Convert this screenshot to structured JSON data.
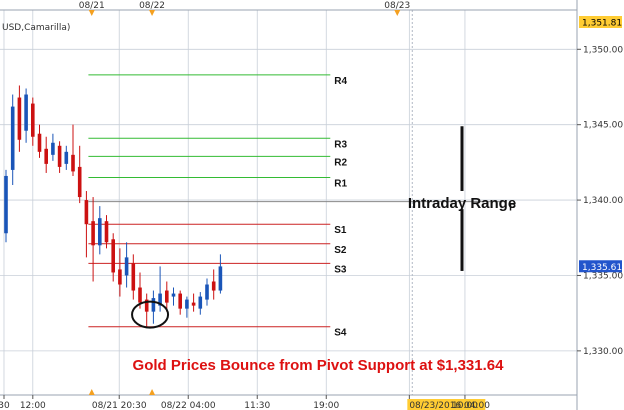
{
  "symbol_label": "USD,Camarilla)",
  "colors": {
    "up": "#1a55b8",
    "down": "#cc1111",
    "resistance": "#33bb33",
    "support": "#cc2222",
    "pivot": "#888888",
    "highlight_price_bg": "#ffcc33",
    "last_price_bg": "#2255cc",
    "title_color": "#dd1111",
    "grid": "#c8cfd8",
    "marker_fill": "#f4a020"
  },
  "chart_data": {
    "type": "candlestick",
    "title": "Gold Prices Bounce from Pivot Support at $1,331.64",
    "annotation": "Intraday Range",
    "y_axis": {
      "min": 1328.2,
      "max": 1351.81,
      "ticks": [
        1330.0,
        1335.0,
        1340.0,
        1345.0,
        1350.0
      ],
      "tick_labels": [
        "1,330.00",
        "1,335.00",
        "1,340.00",
        "1,345.00",
        "1,350.00"
      ]
    },
    "highlighted_prices": [
      {
        "value": 1351.81,
        "label": "1,351.81",
        "style": "highlight"
      },
      {
        "value": 1335.61,
        "label": "1,335.61",
        "style": "last"
      }
    ],
    "x_axis": {
      "bottom_ticks": [
        {
          "label": "30",
          "index": -0.3
        },
        {
          "label": "12:00",
          "index": 4
        },
        {
          "label": "08/21 20:30",
          "index": 16.9
        },
        {
          "label": "08/22 04:00",
          "index": 27.2
        },
        {
          "label": "11:30",
          "index": 37.5
        },
        {
          "label": "19:00",
          "index": 47.8
        },
        {
          "label": "08/23/2016 04:00",
          "index": 60.2
        },
        {
          "label": "10:00",
          "index": 68.5
        }
      ],
      "top_ticks": [
        {
          "label": "08/21",
          "index": 12.8
        },
        {
          "label": "08/22",
          "index": 21.8
        },
        {
          "label": "08/23",
          "index": 58.4
        }
      ]
    },
    "pivots": [
      {
        "name": "R4",
        "value": 1348.3,
        "kind": "resistance",
        "start_index": 12.3,
        "end_index": 48.4
      },
      {
        "name": "R3",
        "value": 1344.1,
        "kind": "resistance",
        "start_index": 12.3,
        "end_index": 48.4
      },
      {
        "name": "R2",
        "value": 1342.9,
        "kind": "resistance",
        "start_index": 12.3,
        "end_index": 48.4
      },
      {
        "name": "R1",
        "value": 1341.5,
        "kind": "resistance",
        "start_index": 12.3,
        "end_index": 48.4
      },
      {
        "name": "P",
        "value": 1339.9,
        "kind": "pivot",
        "start_index": 12.3,
        "end_index": 74.5
      },
      {
        "name": "S1",
        "value": 1338.4,
        "kind": "support",
        "start_index": 12.3,
        "end_index": 48.4
      },
      {
        "name": "S2",
        "value": 1337.1,
        "kind": "support",
        "start_index": 12.3,
        "end_index": 48.4
      },
      {
        "name": "S3",
        "value": 1335.8,
        "kind": "support",
        "start_index": 12.3,
        "end_index": 48.4
      },
      {
        "name": "S4",
        "value": 1331.6,
        "kind": "support",
        "start_index": 12.3,
        "end_index": 48.4
      }
    ],
    "candles": [
      {
        "o": 1337.8,
        "h": 1342.0,
        "l": 1337.2,
        "c": 1341.6
      },
      {
        "o": 1342.0,
        "h": 1347.0,
        "l": 1341.0,
        "c": 1346.2
      },
      {
        "o": 1346.8,
        "h": 1347.6,
        "l": 1343.2,
        "c": 1344.0
      },
      {
        "o": 1344.6,
        "h": 1347.4,
        "l": 1343.8,
        "c": 1347.0
      },
      {
        "o": 1346.4,
        "h": 1346.8,
        "l": 1343.6,
        "c": 1344.2
      },
      {
        "o": 1344.4,
        "h": 1345.0,
        "l": 1342.8,
        "c": 1343.2
      },
      {
        "o": 1343.4,
        "h": 1344.2,
        "l": 1341.8,
        "c": 1342.4
      },
      {
        "o": 1343.0,
        "h": 1344.4,
        "l": 1342.6,
        "c": 1343.8
      },
      {
        "o": 1343.6,
        "h": 1343.9,
        "l": 1341.8,
        "c": 1342.2
      },
      {
        "o": 1342.4,
        "h": 1343.6,
        "l": 1342.0,
        "c": 1343.2
      },
      {
        "o": 1343.0,
        "h": 1345.0,
        "l": 1341.6,
        "c": 1341.9
      },
      {
        "o": 1342.2,
        "h": 1343.6,
        "l": 1339.8,
        "c": 1340.2
      },
      {
        "o": 1340.0,
        "h": 1340.6,
        "l": 1336.2,
        "c": 1338.4
      },
      {
        "o": 1338.6,
        "h": 1340.2,
        "l": 1334.6,
        "c": 1337.0
      },
      {
        "o": 1337.0,
        "h": 1339.6,
        "l": 1336.4,
        "c": 1338.8
      },
      {
        "o": 1338.6,
        "h": 1339.0,
        "l": 1336.8,
        "c": 1337.2
      },
      {
        "o": 1337.4,
        "h": 1337.8,
        "l": 1334.6,
        "c": 1335.2
      },
      {
        "o": 1335.4,
        "h": 1336.8,
        "l": 1333.6,
        "c": 1334.4
      },
      {
        "o": 1335.0,
        "h": 1337.2,
        "l": 1334.2,
        "c": 1336.2
      },
      {
        "o": 1335.8,
        "h": 1336.4,
        "l": 1333.4,
        "c": 1334.0
      },
      {
        "o": 1334.2,
        "h": 1335.2,
        "l": 1332.8,
        "c": 1333.2
      },
      {
        "o": 1333.4,
        "h": 1333.8,
        "l": 1331.6,
        "c": 1332.6
      },
      {
        "o": 1332.6,
        "h": 1334.0,
        "l": 1331.8,
        "c": 1333.5
      },
      {
        "o": 1333.0,
        "h": 1335.6,
        "l": 1332.6,
        "c": 1333.8
      },
      {
        "o": 1334.0,
        "h": 1334.6,
        "l": 1332.6,
        "c": 1333.2
      },
      {
        "o": 1333.6,
        "h": 1334.2,
        "l": 1333.0,
        "c": 1333.8
      },
      {
        "o": 1333.8,
        "h": 1334.0,
        "l": 1332.4,
        "c": 1332.8
      },
      {
        "o": 1332.8,
        "h": 1333.6,
        "l": 1332.2,
        "c": 1333.4
      },
      {
        "o": 1333.2,
        "h": 1333.8,
        "l": 1332.6,
        "c": 1333.0
      },
      {
        "o": 1332.8,
        "h": 1333.9,
        "l": 1332.4,
        "c": 1333.6
      },
      {
        "o": 1333.4,
        "h": 1334.8,
        "l": 1333.0,
        "c": 1334.4
      },
      {
        "o": 1334.6,
        "h": 1335.4,
        "l": 1333.4,
        "c": 1334.0
      },
      {
        "o": 1334.0,
        "h": 1336.4,
        "l": 1333.8,
        "c": 1335.6
      }
    ]
  }
}
